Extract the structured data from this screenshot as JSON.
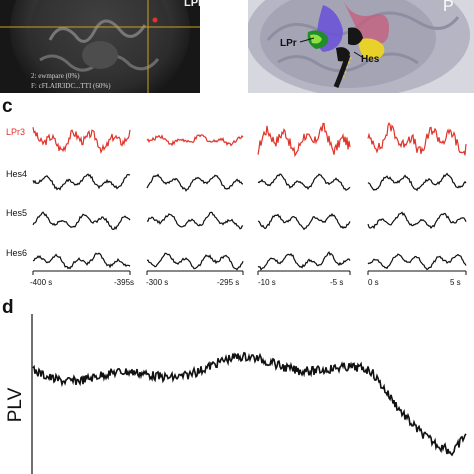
{
  "panel_labels": {
    "c": "c",
    "d": "d"
  },
  "mri_panel": {
    "corner_label": "LPr",
    "info_line1": "2: ewmpare (0%)",
    "info_line2": "F: cFLAIR3DC...TTI (60%)"
  },
  "brain_panel": {
    "lpr_label": "LPr",
    "hes_label": "Hes",
    "p_label": "P"
  },
  "colors": {
    "lpr_trace": "#e0332a",
    "hes_trace": "#111111",
    "plv_trace": "#111111"
  },
  "channels": [
    {
      "name": "LPr3",
      "color": "#e0332a"
    },
    {
      "name": "Hes4",
      "color": "#111111"
    },
    {
      "name": "Hes5",
      "color": "#111111"
    },
    {
      "name": "Hes6",
      "color": "#111111"
    }
  ],
  "time_windows": [
    {
      "start": "-400 s",
      "end": "-395s"
    },
    {
      "start": "-300 s",
      "end": "-295 s"
    },
    {
      "start": "-10 s",
      "end": "-5 s"
    },
    {
      "start": "0 s",
      "end": "5 s"
    }
  ],
  "plv_panel": {
    "ylabel": "PLV"
  }
}
